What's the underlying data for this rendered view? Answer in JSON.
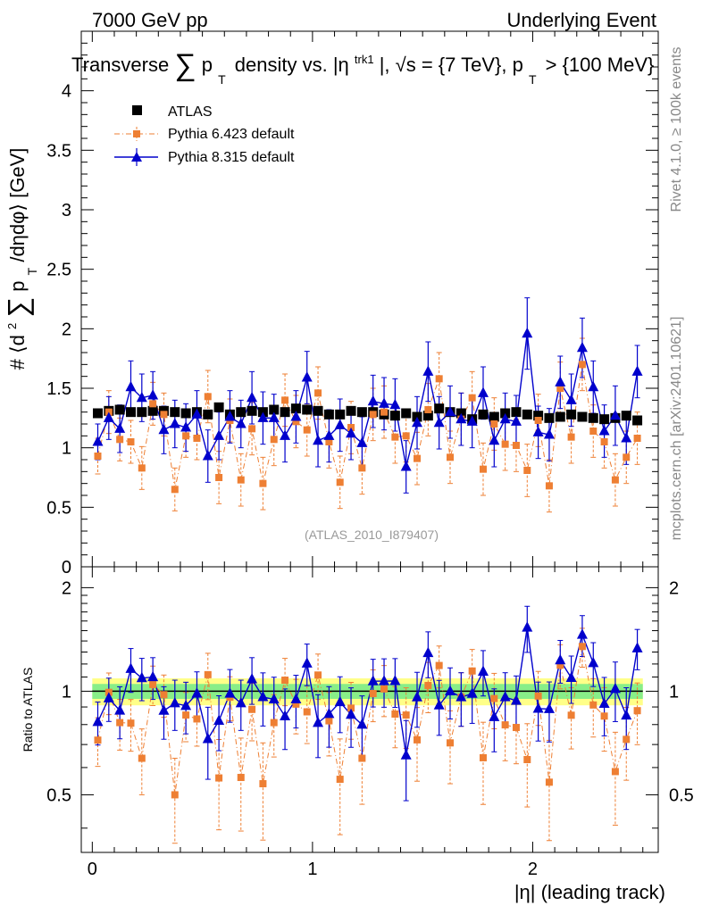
{
  "header": {
    "left": "7000 GeV pp",
    "right": "Underlying Event"
  },
  "side_text": {
    "rivet": "Rivet 4.1.0, ≥ 100k events",
    "mcplots": "mcplots.cern.ch [arXiv:2401.10621]"
  },
  "chart_data": {
    "type": "scatter",
    "title": "Transverse ∑ p_T density vs. |η^trk1|, √s = {7 TeV}, p_T > {100 MeV}",
    "title_parts": {
      "a": "Transverse",
      "sum": "∑",
      "p": "p",
      "T": "T",
      "b": "density vs. |η",
      "sup": "trk1",
      "c": "|, √s = {7 TeV}, p",
      "T2": "T",
      "d": "> {100 MeV}"
    },
    "analysis_id": "(ATLAS_2010_I879407)",
    "xlabel": "|η| (leading track)",
    "ylabel": "⟨d²∑ p_T /dηdφ⟩ [GeV]",
    "ylabel_parts": {
      "open": "⟨d",
      "two": "2",
      "sum": "∑",
      "p": "p",
      "T": "T",
      "rest": "/dηdφ⟩ [GeV]"
    },
    "ratio_ylabel": "Ratio to ATLAS",
    "xlim": [
      -0.05,
      2.57
    ],
    "ylim": [
      0,
      4.5
    ],
    "ratio_ylim": [
      0.34,
      2.3
    ],
    "x_ticks": [
      "0",
      "1",
      "2"
    ],
    "y_ticks": [
      "0",
      "0.5",
      "1",
      "1.5",
      "2",
      "2.5",
      "3",
      "3.5",
      "4"
    ],
    "ratio_ticks": [
      "0.5",
      "1",
      "2"
    ],
    "legend": [
      {
        "label": "ATLAS"
      },
      {
        "label": "Pythia 6.423 default"
      },
      {
        "label": "Pythia 8.315 default"
      }
    ],
    "x": [
      0.025,
      0.075,
      0.125,
      0.175,
      0.225,
      0.275,
      0.325,
      0.375,
      0.425,
      0.475,
      0.525,
      0.575,
      0.625,
      0.675,
      0.725,
      0.775,
      0.825,
      0.875,
      0.925,
      0.975,
      1.025,
      1.075,
      1.125,
      1.175,
      1.225,
      1.275,
      1.325,
      1.375,
      1.425,
      1.475,
      1.525,
      1.575,
      1.625,
      1.675,
      1.725,
      1.775,
      1.825,
      1.875,
      1.925,
      1.975,
      2.025,
      2.075,
      2.125,
      2.175,
      2.225,
      2.275,
      2.325,
      2.375,
      2.425,
      2.475
    ],
    "series": [
      {
        "name": "ATLAS",
        "color": "#000000",
        "values": [
          1.29,
          1.31,
          1.32,
          1.3,
          1.3,
          1.31,
          1.31,
          1.3,
          1.29,
          1.3,
          1.28,
          1.34,
          1.28,
          1.3,
          1.31,
          1.3,
          1.32,
          1.3,
          1.33,
          1.32,
          1.31,
          1.28,
          1.28,
          1.31,
          1.3,
          1.3,
          1.28,
          1.27,
          1.29,
          1.26,
          1.27,
          1.33,
          1.3,
          1.29,
          1.24,
          1.28,
          1.26,
          1.29,
          1.3,
          1.28,
          1.27,
          1.25,
          1.26,
          1.28,
          1.26,
          1.25,
          1.24,
          1.25,
          1.27,
          1.23
        ],
        "errors": [
          0.03,
          0.03,
          0.03,
          0.03,
          0.03,
          0.03,
          0.03,
          0.03,
          0.03,
          0.03,
          0.03,
          0.03,
          0.03,
          0.03,
          0.03,
          0.03,
          0.03,
          0.03,
          0.03,
          0.03,
          0.03,
          0.03,
          0.03,
          0.03,
          0.03,
          0.03,
          0.03,
          0.03,
          0.03,
          0.03,
          0.03,
          0.03,
          0.03,
          0.03,
          0.03,
          0.03,
          0.03,
          0.03,
          0.03,
          0.03,
          0.03,
          0.03,
          0.03,
          0.03,
          0.03,
          0.03,
          0.03,
          0.03,
          0.03,
          0.03
        ]
      },
      {
        "name": "Pythia 6.423 default",
        "color": "#ee7f33",
        "values": [
          0.93,
          1.3,
          1.07,
          1.05,
          0.83,
          1.37,
          1.28,
          0.65,
          1.1,
          1.08,
          1.43,
          0.75,
          1.23,
          0.73,
          1.16,
          0.7,
          1.07,
          1.4,
          1.22,
          1.15,
          1.46,
          1.05,
          0.71,
          1.17,
          0.83,
          1.28,
          1.3,
          1.09,
          1.1,
          0.91,
          1.32,
          1.58,
          0.92,
          1.24,
          1.42,
          0.82,
          1.2,
          1.03,
          1.02,
          0.81,
          1.23,
          0.68,
          1.5,
          1.09,
          1.7,
          1.14,
          1.05,
          0.73,
          0.92,
          1.08
        ],
        "errors": [
          0.15,
          0.18,
          0.18,
          0.18,
          0.18,
          0.18,
          0.18,
          0.18,
          0.18,
          0.18,
          0.22,
          0.22,
          0.18,
          0.22,
          0.22,
          0.22,
          0.22,
          0.22,
          0.22,
          0.22,
          0.22,
          0.22,
          0.22,
          0.22,
          0.22,
          0.22,
          0.22,
          0.22,
          0.22,
          0.22,
          0.22,
          0.22,
          0.22,
          0.22,
          0.22,
          0.22,
          0.22,
          0.22,
          0.22,
          0.22,
          0.22,
          0.22,
          0.22,
          0.22,
          0.22,
          0.22,
          0.22,
          0.22,
          0.22,
          0.22
        ]
      },
      {
        "name": "Pythia 8.315 default",
        "color": "#0000cc",
        "values": [
          1.05,
          1.25,
          1.16,
          1.51,
          1.42,
          1.44,
          1.15,
          1.2,
          1.17,
          1.28,
          0.93,
          1.1,
          1.26,
          1.2,
          1.42,
          1.25,
          1.25,
          1.1,
          1.26,
          1.59,
          1.06,
          1.1,
          1.19,
          1.12,
          1.04,
          1.39,
          1.37,
          1.36,
          0.84,
          1.21,
          1.64,
          1.21,
          1.3,
          1.24,
          1.22,
          1.46,
          1.06,
          1.24,
          1.22,
          1.96,
          1.13,
          1.11,
          1.55,
          1.4,
          1.84,
          1.51,
          1.14,
          1.27,
          1.08,
          1.64
        ],
        "errors": [
          0.15,
          0.18,
          0.2,
          0.22,
          0.2,
          0.2,
          0.2,
          0.2,
          0.2,
          0.2,
          0.22,
          0.2,
          0.22,
          0.2,
          0.22,
          0.22,
          0.2,
          0.22,
          0.22,
          0.22,
          0.22,
          0.22,
          0.22,
          0.22,
          0.22,
          0.22,
          0.22,
          0.22,
          0.22,
          0.22,
          0.25,
          0.22,
          0.22,
          0.22,
          0.22,
          0.22,
          0.22,
          0.22,
          0.22,
          0.3,
          0.22,
          0.22,
          0.22,
          0.22,
          0.25,
          0.22,
          0.22,
          0.25,
          0.22,
          0.22
        ]
      }
    ],
    "ratio_band": {
      "inner": [
        0.95,
        1.05
      ],
      "outer": [
        0.91,
        1.09
      ]
    }
  }
}
